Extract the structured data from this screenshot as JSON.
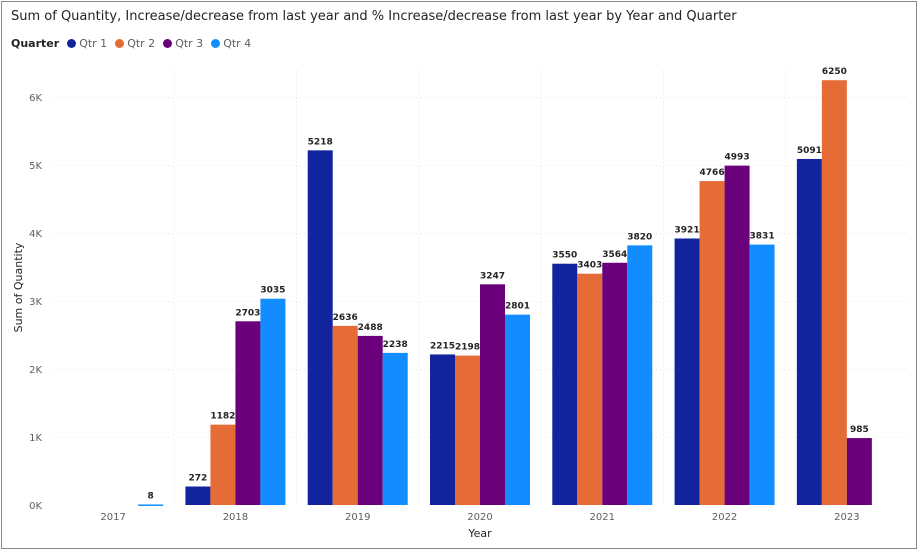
{
  "chart_data": {
    "type": "bar",
    "title": "Sum of Quantity, Increase/decrease from last year and % Increase/decrease from last year by Year and Quarter",
    "legend_title": "Quarter",
    "xlabel": "Year",
    "ylabel": "Sum of Quantity",
    "categories": [
      "2017",
      "2018",
      "2019",
      "2020",
      "2021",
      "2022",
      "2023"
    ],
    "yticks": [
      0,
      1000,
      2000,
      3000,
      4000,
      5000,
      6000
    ],
    "ytick_labels": [
      "0K",
      "1K",
      "2K",
      "3K",
      "4K",
      "5K",
      "6K"
    ],
    "ylim": [
      0,
      6400
    ],
    "grid": true,
    "legend_position": "top-left",
    "series": [
      {
        "name": "Qtr 1",
        "color": "#12239E",
        "values": [
          null,
          272,
          5218,
          2215,
          3550,
          3921,
          5091
        ]
      },
      {
        "name": "Qtr 2",
        "color": "#E66C37",
        "values": [
          null,
          1182,
          2636,
          2198,
          3403,
          4766,
          6250
        ]
      },
      {
        "name": "Qtr 3",
        "color": "#6B007B",
        "values": [
          null,
          2703,
          2488,
          3247,
          3564,
          4993,
          985
        ]
      },
      {
        "name": "Qtr 4",
        "color": "#118DFF",
        "values": [
          8,
          3035,
          2238,
          2801,
          3820,
          3831,
          null
        ]
      }
    ]
  }
}
